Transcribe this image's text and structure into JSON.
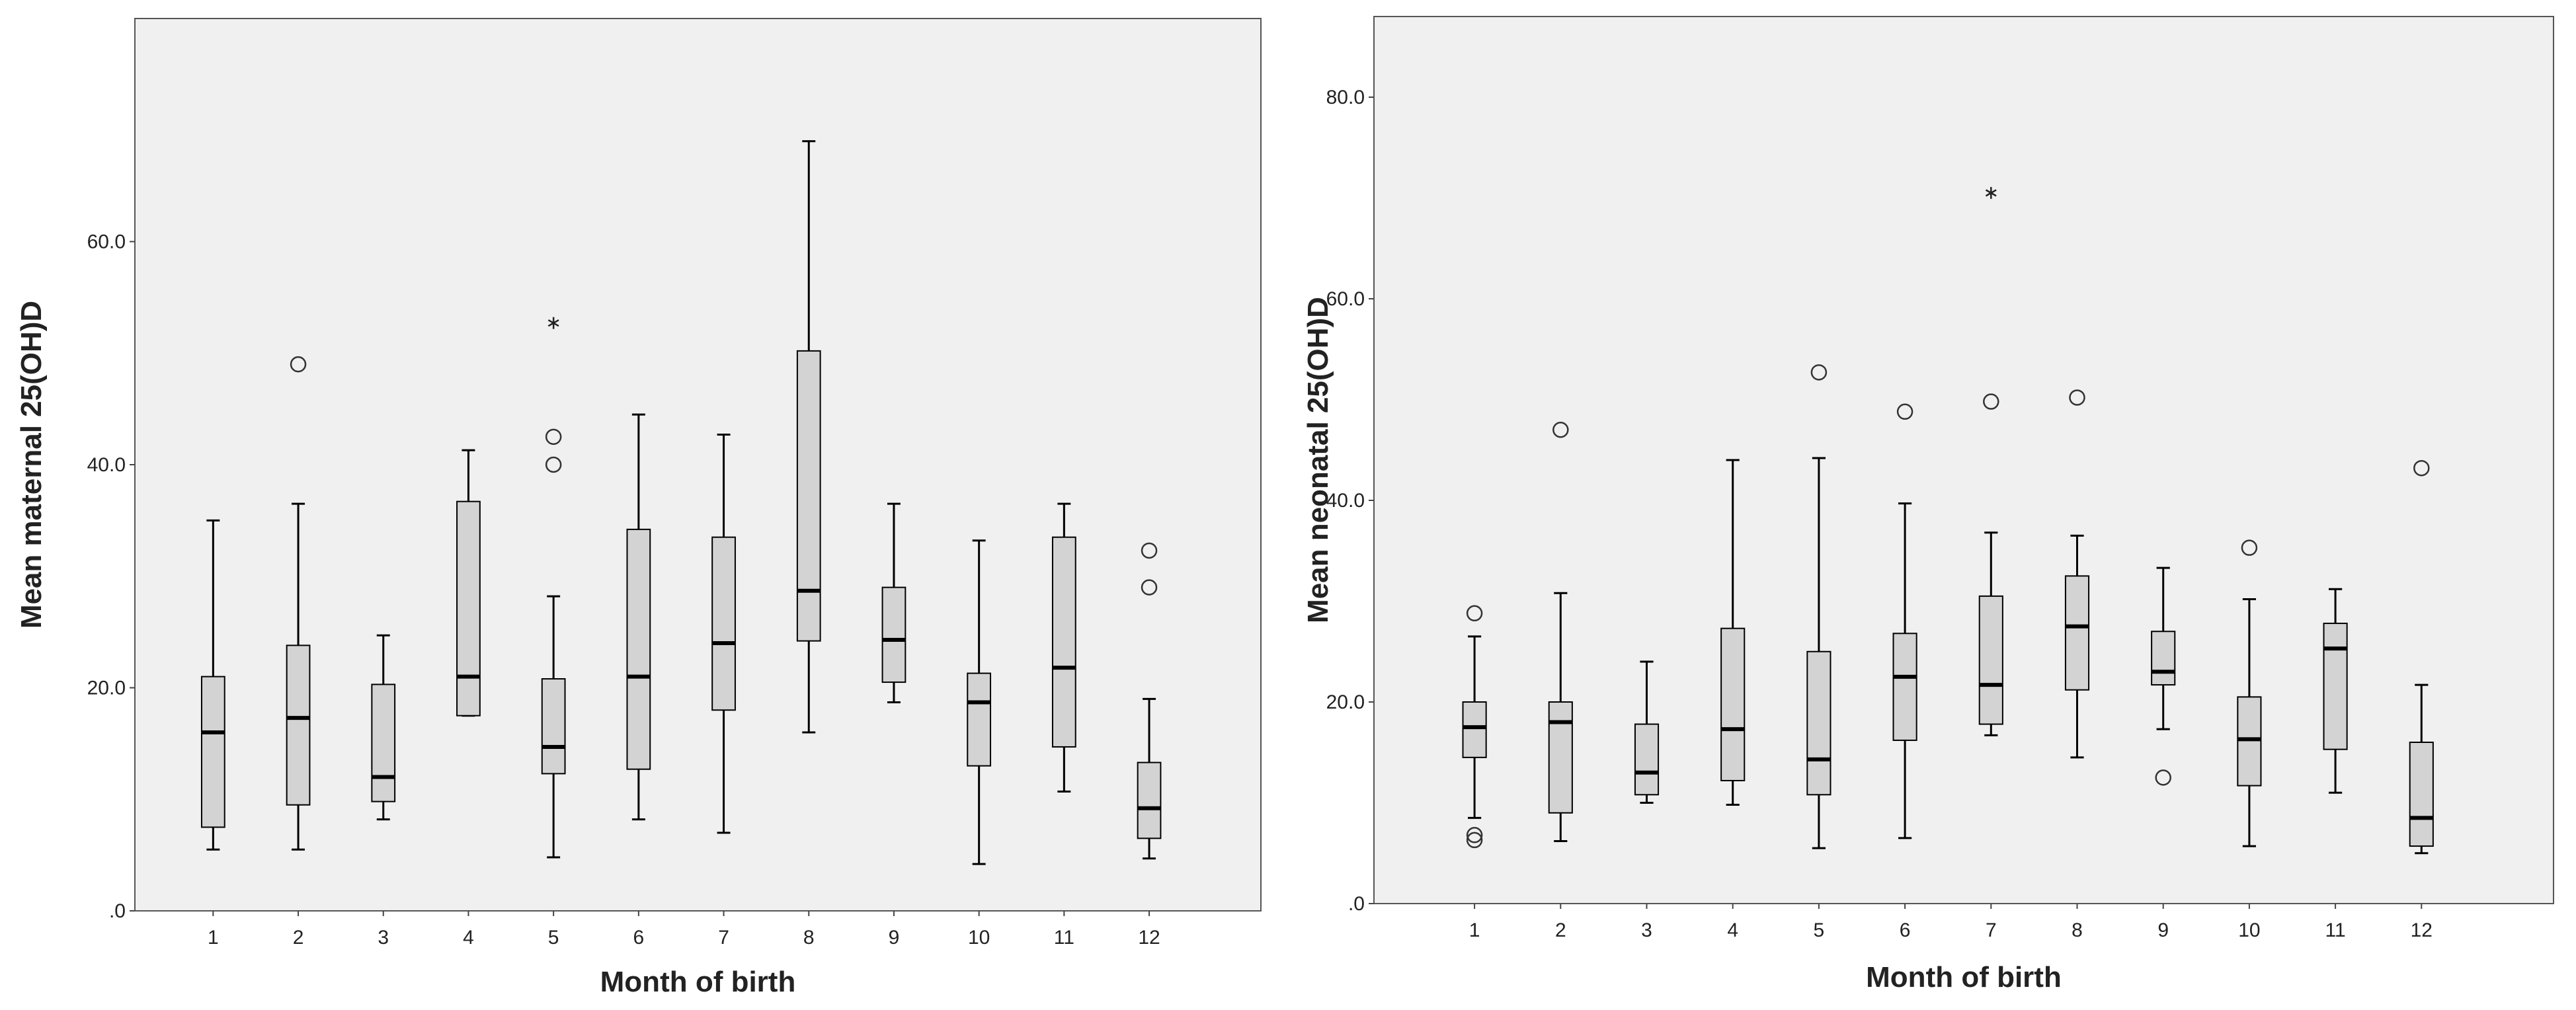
{
  "chart_data": [
    {
      "type": "boxplot",
      "xlabel": "Month of birth",
      "ylabel": "Mean maternal 25(OH)D",
      "ylim": [
        0,
        80
      ],
      "yticks": [
        0,
        20,
        40,
        60
      ],
      "ytick_labels": [
        ".0",
        "20.0",
        "40.0",
        "60.0"
      ],
      "categories": [
        "1",
        "2",
        "3",
        "4",
        "5",
        "6",
        "7",
        "8",
        "9",
        "10",
        "11",
        "12"
      ],
      "colors": {
        "plot_bg": "#f0f0f0",
        "box_fill": "#d3d3d3",
        "stroke": "#000000"
      },
      "boxes": [
        {
          "category": "1",
          "whisker_low": 5.5,
          "q1": 7.5,
          "median": 16.0,
          "q3": 21.0,
          "whisker_high": 35.0,
          "outliers": [],
          "extremes": []
        },
        {
          "category": "2",
          "whisker_low": 5.5,
          "q1": 9.5,
          "median": 17.3,
          "q3": 23.8,
          "whisker_high": 36.5,
          "outliers": [
            49.0
          ],
          "extremes": []
        },
        {
          "category": "3",
          "whisker_low": 8.2,
          "q1": 9.8,
          "median": 12.0,
          "q3": 20.3,
          "whisker_high": 24.7,
          "outliers": [],
          "extremes": []
        },
        {
          "category": "4",
          "whisker_low": 17.5,
          "q1": 17.5,
          "median": 21.0,
          "q3": 36.7,
          "whisker_high": 41.3,
          "outliers": [],
          "extremes": []
        },
        {
          "category": "5",
          "whisker_low": 4.8,
          "q1": 12.3,
          "median": 14.7,
          "q3": 20.8,
          "whisker_high": 28.2,
          "outliers": [
            40.0,
            42.5
          ],
          "extremes": [
            52.7
          ]
        },
        {
          "category": "6",
          "whisker_low": 8.2,
          "q1": 12.7,
          "median": 21.0,
          "q3": 34.2,
          "whisker_high": 44.5,
          "outliers": [],
          "extremes": []
        },
        {
          "category": "7",
          "whisker_low": 7.0,
          "q1": 18.0,
          "median": 24.0,
          "q3": 33.5,
          "whisker_high": 42.7,
          "outliers": [],
          "extremes": []
        },
        {
          "category": "8",
          "whisker_low": 16.0,
          "q1": 24.2,
          "median": 28.7,
          "q3": 50.2,
          "whisker_high": 69.0,
          "outliers": [],
          "extremes": []
        },
        {
          "category": "9",
          "whisker_low": 18.7,
          "q1": 20.5,
          "median": 24.3,
          "q3": 29.0,
          "whisker_high": 36.5,
          "outliers": [],
          "extremes": []
        },
        {
          "category": "10",
          "whisker_low": 4.2,
          "q1": 13.0,
          "median": 18.7,
          "q3": 21.3,
          "whisker_high": 33.2,
          "outliers": [],
          "extremes": []
        },
        {
          "category": "11",
          "whisker_low": 10.7,
          "q1": 14.7,
          "median": 21.8,
          "q3": 33.5,
          "whisker_high": 36.5,
          "outliers": [],
          "extremes": []
        },
        {
          "category": "12",
          "whisker_low": 4.7,
          "q1": 6.5,
          "median": 9.2,
          "q3": 13.3,
          "whisker_high": 19.0,
          "outliers": [
            29.0,
            32.3
          ],
          "extremes": []
        }
      ]
    },
    {
      "type": "boxplot",
      "xlabel": "Month of birth",
      "ylabel": "Mean neonatal 25(OH)D",
      "ylim": [
        0,
        88
      ],
      "yticks": [
        0,
        20,
        40,
        60,
        80
      ],
      "ytick_labels": [
        ".0",
        "20.0",
        "40.0",
        "60.0",
        "80.0"
      ],
      "categories": [
        "1",
        "2",
        "3",
        "4",
        "5",
        "6",
        "7",
        "8",
        "9",
        "10",
        "11",
        "12"
      ],
      "colors": {
        "plot_bg": "#f0f0f0",
        "box_fill": "#d3d3d3",
        "stroke": "#000000"
      },
      "boxes": [
        {
          "category": "1",
          "whisker_low": 8.5,
          "q1": 14.5,
          "median": 17.5,
          "q3": 20.0,
          "whisker_high": 26.5,
          "outliers": [
            6.3,
            6.8,
            28.8
          ],
          "extremes": []
        },
        {
          "category": "2",
          "whisker_low": 6.2,
          "q1": 9.0,
          "median": 18.0,
          "q3": 20.0,
          "whisker_high": 30.8,
          "outliers": [
            47.0
          ],
          "extremes": []
        },
        {
          "category": "3",
          "whisker_low": 10.0,
          "q1": 10.8,
          "median": 13.0,
          "q3": 17.8,
          "whisker_high": 24.0,
          "outliers": [],
          "extremes": []
        },
        {
          "category": "4",
          "whisker_low": 9.8,
          "q1": 12.2,
          "median": 17.3,
          "q3": 27.3,
          "whisker_high": 44.0,
          "outliers": [],
          "extremes": []
        },
        {
          "category": "5",
          "whisker_low": 5.5,
          "q1": 10.8,
          "median": 14.3,
          "q3": 25.0,
          "whisker_high": 44.2,
          "outliers": [
            52.7
          ],
          "extremes": []
        },
        {
          "category": "6",
          "whisker_low": 6.5,
          "q1": 16.2,
          "median": 22.5,
          "q3": 26.8,
          "whisker_high": 39.7,
          "outliers": [
            48.8
          ],
          "extremes": []
        },
        {
          "category": "7",
          "whisker_low": 16.7,
          "q1": 17.8,
          "median": 21.7,
          "q3": 30.5,
          "whisker_high": 36.8,
          "outliers": [
            49.8
          ],
          "extremes": [
            70.5
          ]
        },
        {
          "category": "8",
          "whisker_low": 14.5,
          "q1": 21.2,
          "median": 27.5,
          "q3": 32.5,
          "whisker_high": 36.5,
          "outliers": [
            50.2
          ],
          "extremes": []
        },
        {
          "category": "9",
          "whisker_low": 17.3,
          "q1": 21.7,
          "median": 23.0,
          "q3": 27.0,
          "whisker_high": 33.3,
          "outliers": [
            12.5
          ],
          "extremes": []
        },
        {
          "category": "10",
          "whisker_low": 5.7,
          "q1": 11.7,
          "median": 16.3,
          "q3": 20.5,
          "whisker_high": 30.2,
          "outliers": [
            35.3
          ],
          "extremes": []
        },
        {
          "category": "11",
          "whisker_low": 11.0,
          "q1": 15.3,
          "median": 25.3,
          "q3": 27.8,
          "whisker_high": 31.2,
          "outliers": [],
          "extremes": []
        },
        {
          "category": "12",
          "whisker_low": 5.0,
          "q1": 5.7,
          "median": 8.5,
          "q3": 16.0,
          "whisker_high": 21.7,
          "outliers": [
            43.2
          ],
          "extremes": []
        }
      ]
    }
  ]
}
